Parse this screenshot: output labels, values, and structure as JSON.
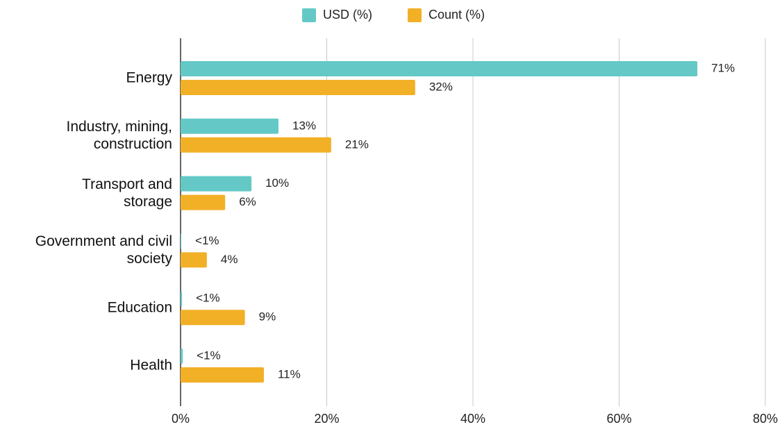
{
  "chart_data": {
    "type": "bar",
    "orientation": "horizontal",
    "categories": [
      "Energy",
      "Industry, mining,\nconstruction",
      "Transport and\nstorage",
      "Government and civil\nsociety",
      "Education",
      "Health"
    ],
    "series": [
      {
        "name": "USD (%)",
        "color": "#64c9c6",
        "values": [
          70.7,
          13.4,
          9.7,
          0.1,
          0.2,
          0.3
        ],
        "value_labels": [
          "71%",
          "13%",
          "10%",
          "<1%",
          "<1%",
          "<1%"
        ]
      },
      {
        "name": "Count (%)",
        "color": "#f2b027",
        "values": [
          32.1,
          20.6,
          6.1,
          3.6,
          8.8,
          11.4
        ],
        "value_labels": [
          "32%",
          "21%",
          "6%",
          "4%",
          "9%",
          "11%"
        ]
      }
    ],
    "xlim": [
      0,
      80
    ],
    "xticks": [
      {
        "value": 0,
        "label": "0%"
      },
      {
        "value": 20,
        "label": "20%"
      },
      {
        "value": 40,
        "label": "40%"
      },
      {
        "value": 60,
        "label": "60%"
      },
      {
        "value": 80,
        "label": "80%"
      }
    ],
    "grid": true,
    "legend": "top"
  }
}
